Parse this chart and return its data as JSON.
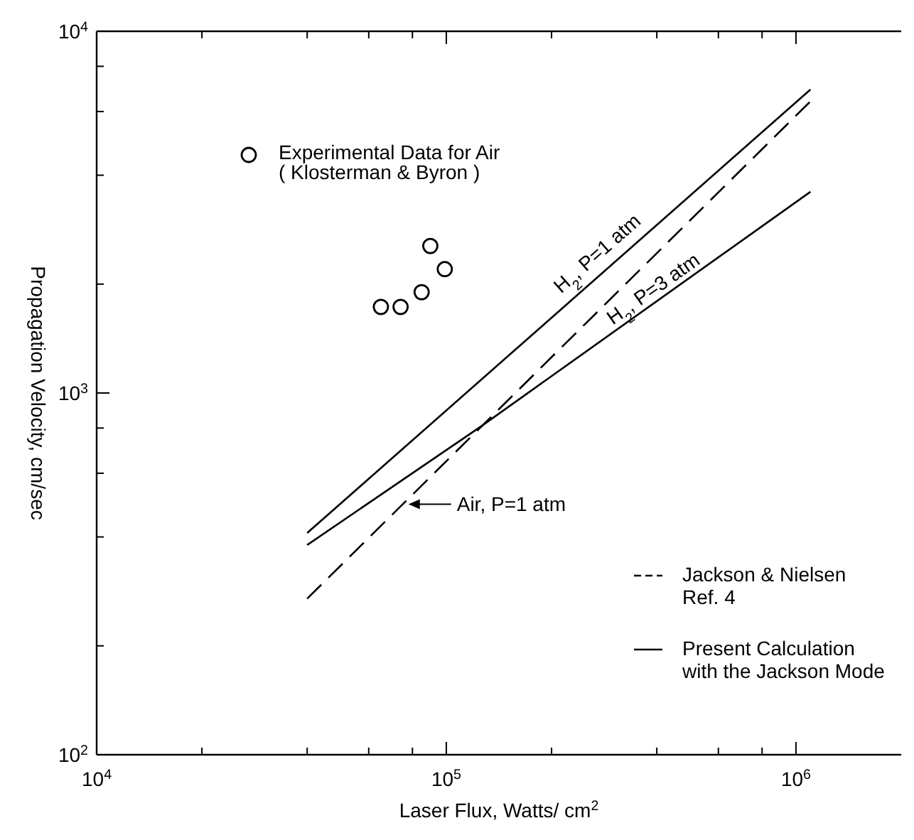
{
  "chart_data": {
    "type": "line",
    "xlabel": "Laser Flux, Watts/ cm$^{2}$",
    "ylabel": "Propagation Velocity, cm/sec",
    "log": "xy",
    "xlim": [
      10000,
      2000000
    ],
    "ylim": [
      100,
      10000
    ],
    "xticks": [
      {
        "value": 10000,
        "label": "10$^{4}$"
      },
      {
        "value": 20000,
        "label": null
      },
      {
        "value": 40000,
        "label": null
      },
      {
        "value": 60000,
        "label": null
      },
      {
        "value": 80000,
        "label": null
      },
      {
        "value": 100000,
        "label": "10$^{5}$"
      },
      {
        "value": 200000,
        "label": null
      },
      {
        "value": 400000,
        "label": null
      },
      {
        "value": 600000,
        "label": null
      },
      {
        "value": 800000,
        "label": null
      },
      {
        "value": 1000000,
        "label": "10$^{6}$"
      }
    ],
    "yticks": [
      {
        "value": 100,
        "label": "10$^{2}$"
      },
      {
        "value": 200,
        "label": null
      },
      {
        "value": 400,
        "label": null
      },
      {
        "value": 600,
        "label": null
      },
      {
        "value": 800,
        "label": null
      },
      {
        "value": 1000,
        "label": "10$^{3}$"
      },
      {
        "value": 2000,
        "label": null
      },
      {
        "value": 4000,
        "label": null
      },
      {
        "value": 6000,
        "label": null
      },
      {
        "value": 8000,
        "label": null
      },
      {
        "value": 10000,
        "label": "10$^{4}$"
      }
    ],
    "legend": "top left",
    "series": [
      {
        "name": "H$_{2}$, P=1 atm",
        "color": "#000000",
        "line_style": "solid",
        "marker": "none",
        "x": [
          40000,
          1100000
        ],
        "values": [
          410,
          6900
        ]
      },
      {
        "name": "H$_{2}$, P=3 atm",
        "color": "#000000",
        "line_style": "solid",
        "marker": "none",
        "x": [
          40000,
          126000,
          1100000
        ],
        "values": [
          380,
          810,
          3600
        ]
      },
      {
        "name": "Air, P=1 atm",
        "color": "#000000",
        "line_style": "dashed",
        "marker": "none",
        "x": [
          40000,
          1100000
        ],
        "values": [
          270,
          6400
        ]
      },
      {
        "name": "Experimental Data for Air ( Klosterman & Byron )",
        "type": "scatter",
        "color": "#000000",
        "marker": "circle",
        "x": [
          65000,
          74000,
          85000,
          90000,
          99000
        ],
        "values": [
          1730,
          1730,
          1900,
          2550,
          2200
        ]
      }
    ],
    "annotations": [
      "Jackson & Nielsen Ref. 4",
      "Present Calculation with the Jackson Mode"
    ]
  }
}
